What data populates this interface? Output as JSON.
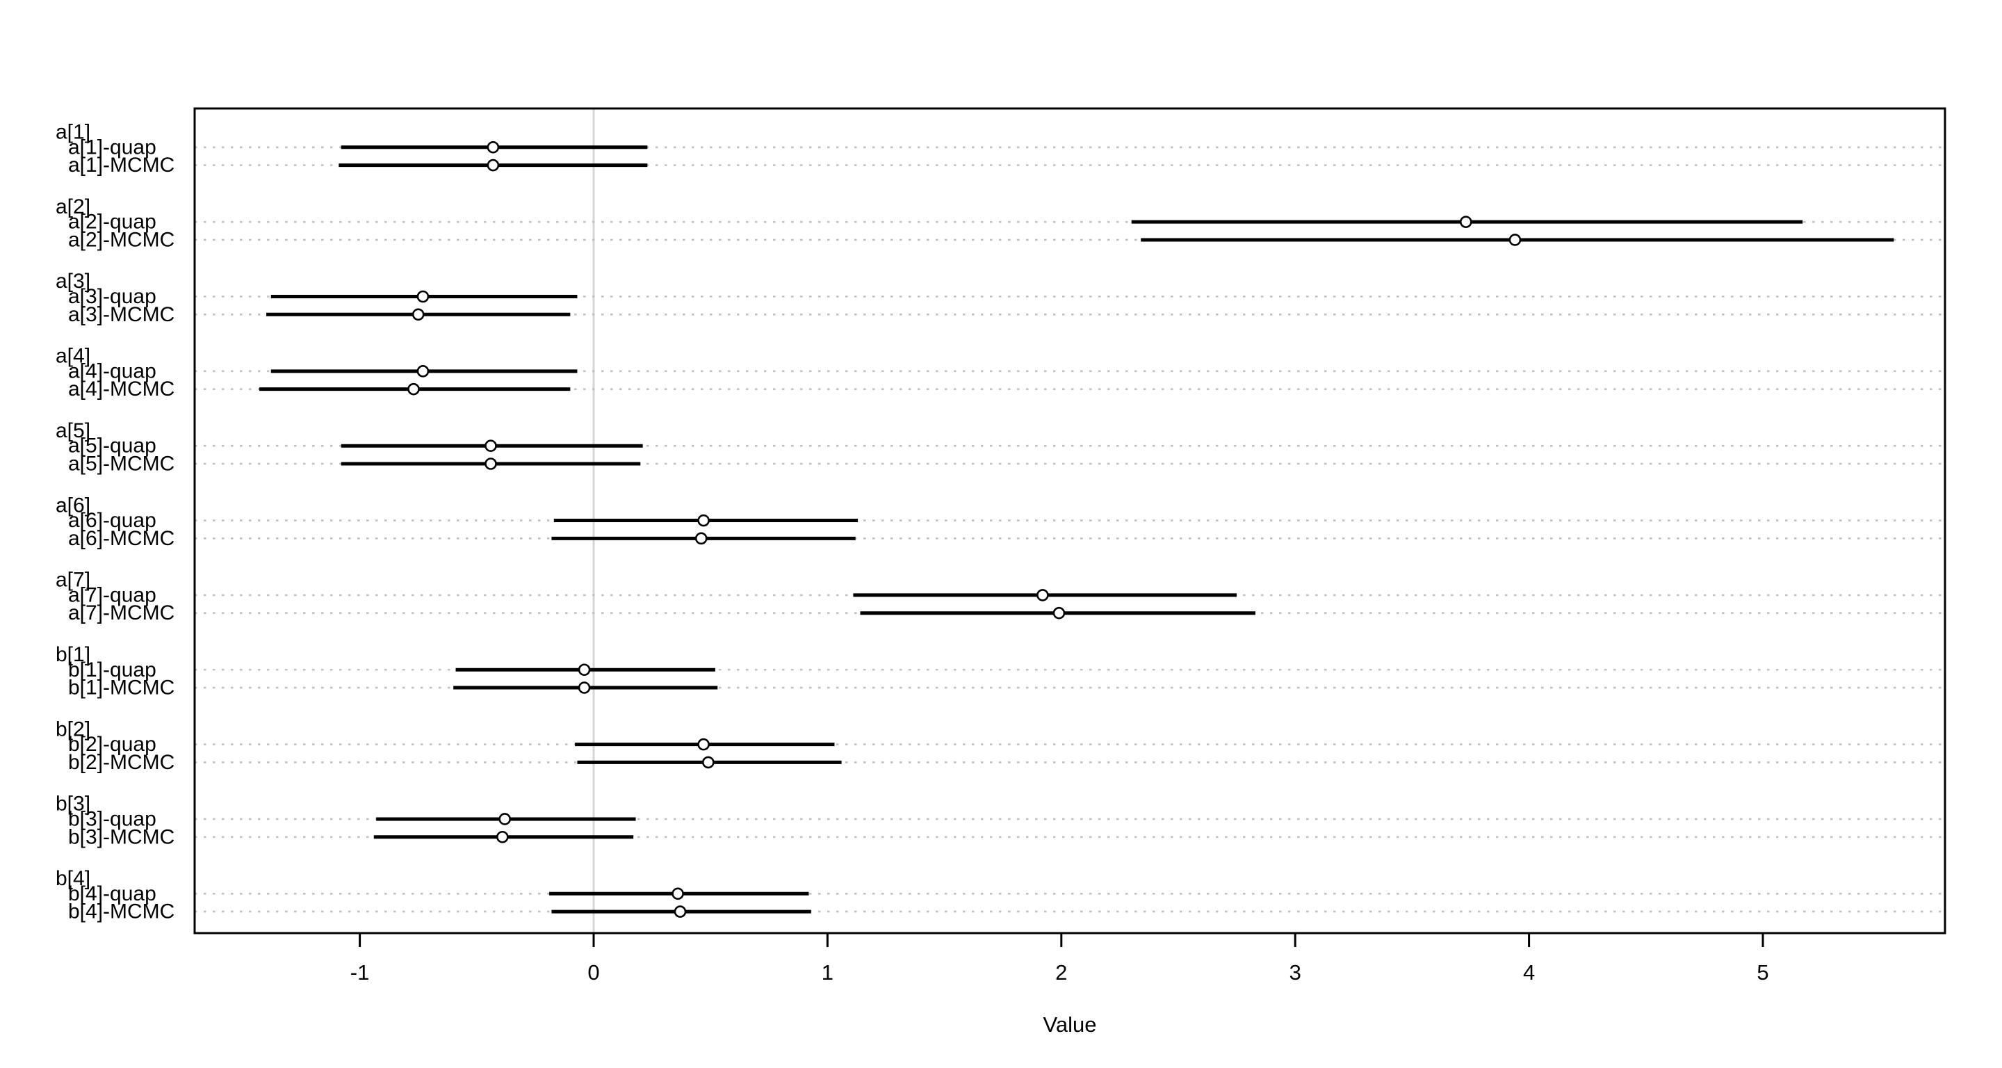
{
  "chart_data": {
    "type": "scatter",
    "subtype": "coefficient-interval-forest-plot",
    "title": "",
    "xlabel": "Value",
    "ylabel": "",
    "x_ticks": [
      -1,
      0,
      1,
      2,
      3,
      4,
      5
    ],
    "xlim": [
      -1.71,
      5.78
    ],
    "grid": "dotted horizontal line at every estimate row, full plot width",
    "zero_reference_line": 0,
    "legend_position": "none",
    "point_marker": "open-circle",
    "series_suffixes": [
      "quap",
      "MCMC"
    ],
    "parameters": [
      {
        "name": "a[1]",
        "label_quap": "a[1]-quap",
        "label_mcmc": "a[1]-MCMC",
        "quap": {
          "mean": -0.43,
          "lo": -1.08,
          "hi": 0.23
        },
        "mcmc": {
          "mean": -0.43,
          "lo": -1.09,
          "hi": 0.23
        }
      },
      {
        "name": "a[2]",
        "label_quap": "a[2]-quap",
        "label_mcmc": "a[2]-MCMC",
        "quap": {
          "mean": 3.73,
          "lo": 2.3,
          "hi": 5.17
        },
        "mcmc": {
          "mean": 3.94,
          "lo": 2.34,
          "hi": 5.56
        }
      },
      {
        "name": "a[3]",
        "label_quap": "a[3]-quap",
        "label_mcmc": "a[3]-MCMC",
        "quap": {
          "mean": -0.73,
          "lo": -1.38,
          "hi": -0.07
        },
        "mcmc": {
          "mean": -0.75,
          "lo": -1.4,
          "hi": -0.1
        }
      },
      {
        "name": "a[4]",
        "label_quap": "a[4]-quap",
        "label_mcmc": "a[4]-MCMC",
        "quap": {
          "mean": -0.73,
          "lo": -1.38,
          "hi": -0.07
        },
        "mcmc": {
          "mean": -0.77,
          "lo": -1.43,
          "hi": -0.1
        }
      },
      {
        "name": "a[5]",
        "label_quap": "a[5]-quap",
        "label_mcmc": "a[5]-MCMC",
        "quap": {
          "mean": -0.44,
          "lo": -1.08,
          "hi": 0.21
        },
        "mcmc": {
          "mean": -0.44,
          "lo": -1.08,
          "hi": 0.2
        }
      },
      {
        "name": "a[6]",
        "label_quap": "a[6]-quap",
        "label_mcmc": "a[6]-MCMC",
        "quap": {
          "mean": 0.47,
          "lo": -0.17,
          "hi": 1.13
        },
        "mcmc": {
          "mean": 0.46,
          "lo": -0.18,
          "hi": 1.12
        }
      },
      {
        "name": "a[7]",
        "label_quap": "a[7]-quap",
        "label_mcmc": "a[7]-MCMC",
        "quap": {
          "mean": 1.92,
          "lo": 1.11,
          "hi": 2.75
        },
        "mcmc": {
          "mean": 1.99,
          "lo": 1.14,
          "hi": 2.83
        }
      },
      {
        "name": "b[1]",
        "label_quap": "b[1]-quap",
        "label_mcmc": "b[1]-MCMC",
        "quap": {
          "mean": -0.04,
          "lo": -0.59,
          "hi": 0.52
        },
        "mcmc": {
          "mean": -0.04,
          "lo": -0.6,
          "hi": 0.53
        }
      },
      {
        "name": "b[2]",
        "label_quap": "b[2]-quap",
        "label_mcmc": "b[2]-MCMC",
        "quap": {
          "mean": 0.47,
          "lo": -0.08,
          "hi": 1.03
        },
        "mcmc": {
          "mean": 0.49,
          "lo": -0.07,
          "hi": 1.06
        }
      },
      {
        "name": "b[3]",
        "label_quap": "b[3]-quap",
        "label_mcmc": "b[3]-MCMC",
        "quap": {
          "mean": -0.38,
          "lo": -0.93,
          "hi": 0.18
        },
        "mcmc": {
          "mean": -0.39,
          "lo": -0.94,
          "hi": 0.17
        }
      },
      {
        "name": "b[4]",
        "label_quap": "b[4]-quap",
        "label_mcmc": "b[4]-MCMC",
        "quap": {
          "mean": 0.36,
          "lo": -0.19,
          "hi": 0.92
        },
        "mcmc": {
          "mean": 0.37,
          "lo": -0.18,
          "hi": 0.93
        }
      }
    ],
    "colors": {
      "data": "#000000",
      "gridline": "#c0c0c0",
      "zero_line": "#d6d6d6",
      "border": "#000000",
      "background": "#ffffff",
      "marker_fill": "#ffffff"
    }
  }
}
